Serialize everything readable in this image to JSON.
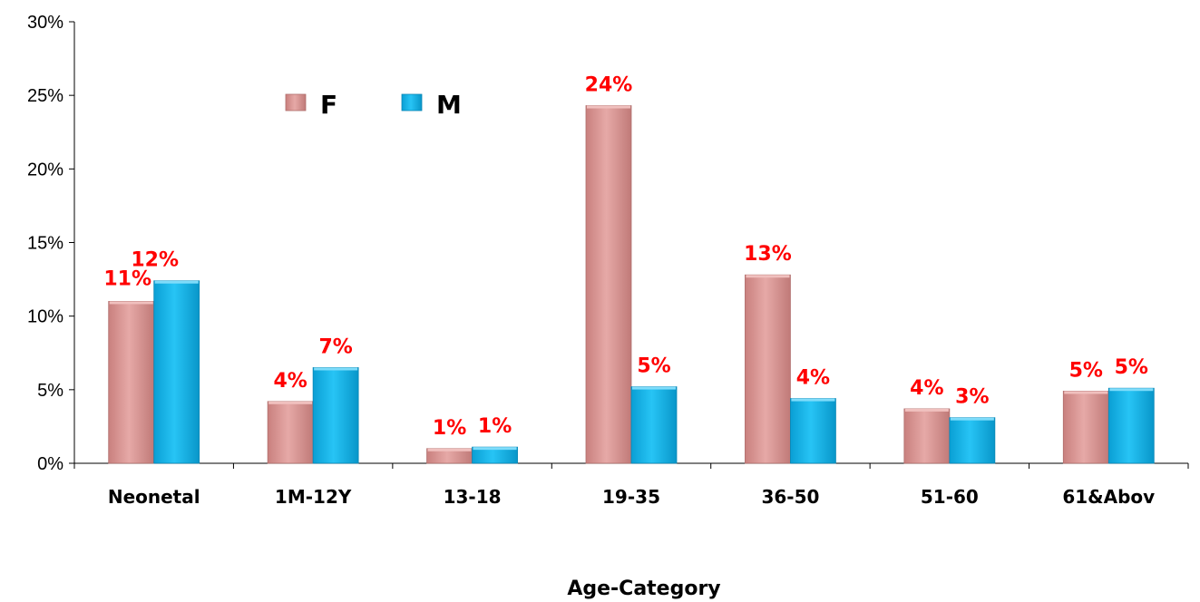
{
  "chart_data": {
    "type": "bar",
    "categories": [
      "Neonetal",
      "1M-12Y",
      "13-18",
      "19-35",
      "36-50",
      "51-60",
      "61&Abov"
    ],
    "series": [
      {
        "name": "F",
        "values": [
          11.0,
          4.2,
          1.0,
          24.3,
          12.8,
          3.7,
          4.9
        ],
        "labels": [
          "11%",
          "4%",
          "1%",
          "24%",
          "13%",
          "4%",
          "5%"
        ],
        "color": "#e09a98"
      },
      {
        "name": "M",
        "values": [
          12.4,
          6.5,
          1.1,
          5.2,
          4.4,
          3.1,
          5.1
        ],
        "labels": [
          "12%",
          "7%",
          "1%",
          "5%",
          "4%",
          "3%",
          "5%"
        ],
        "color": "#1fb6ea"
      }
    ],
    "title": "",
    "xlabel": "Age-Category",
    "ylabel": "",
    "ylim": [
      0,
      30
    ],
    "yticks": [
      "0%",
      "5%",
      "10%",
      "15%",
      "20%",
      "25%",
      "30%"
    ],
    "grid": false,
    "legend_position": "top-left",
    "data_label_color": "#ff0000"
  }
}
